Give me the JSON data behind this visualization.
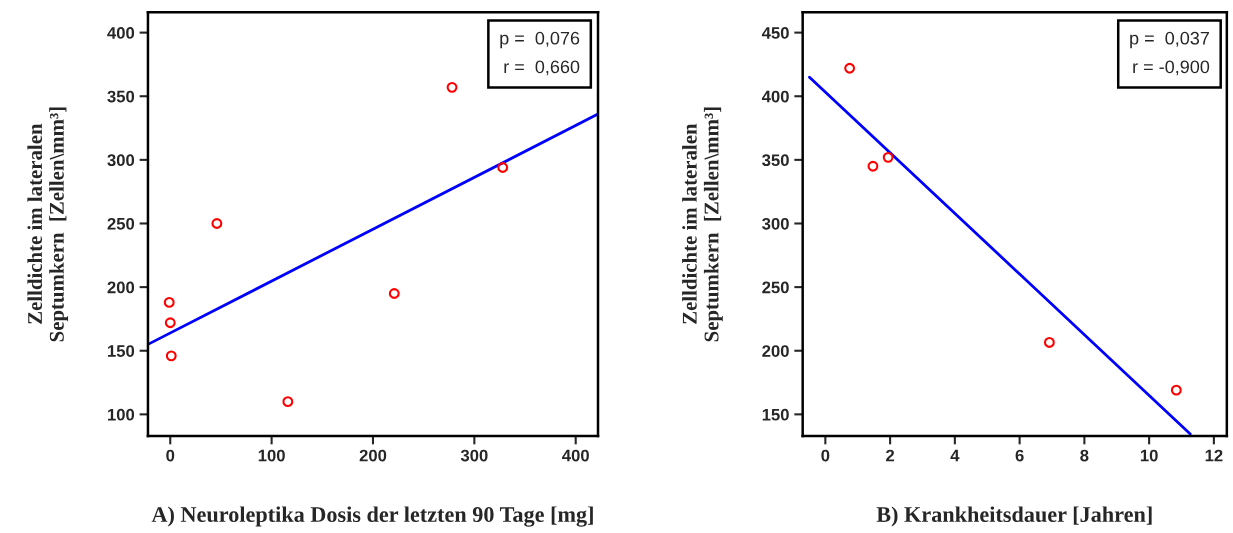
{
  "chart_data": [
    {
      "type": "scatter",
      "xlabel": "A) Neuroleptika Dosis der letzten 90 Tage [mg]",
      "ylabel": "Zelldichte im lateralen\nSeptumkern  [Zellen\\mm³]",
      "annotations": [
        "p =  0,076\nr =  0,660"
      ],
      "xlim": [
        -22,
        422
      ],
      "xticks": [
        0,
        100,
        200,
        300,
        400
      ],
      "ylim": [
        83,
        416
      ],
      "yticks": [
        100,
        150,
        200,
        250,
        300,
        350,
        400
      ],
      "grid": false,
      "series": [
        {
          "marker": "circle",
          "color": "#ff0000",
          "x": [
            -1,
            0,
            1,
            46,
            116,
            221,
            278,
            328
          ],
          "values": [
            188,
            172,
            146,
            250,
            110,
            195,
            357,
            294
          ]
        },
        {
          "type": "line",
          "color": "#0000ff",
          "x": [
            -22,
            422
          ],
          "values": [
            155,
            336
          ]
        }
      ]
    },
    {
      "type": "scatter",
      "xlabel": "B) Krankheitsdauer [Jahren]",
      "ylabel": "Zelldichte im lateralen\nSeptumkern  [Zellen\\mm³]",
      "annotations": [
        "p =  0,037\nr = -0,900"
      ],
      "xlim": [
        -0.7,
        12.4
      ],
      "xticks": [
        0,
        2,
        4,
        6,
        8,
        10,
        12
      ],
      "ylim": [
        133,
        466
      ],
      "yticks": [
        150,
        200,
        250,
        300,
        350,
        400,
        450
      ],
      "grid": false,
      "series": [
        {
          "marker": "circle",
          "color": "#ff0000",
          "x": [
            0.75,
            1.47,
            1.94,
            6.92,
            10.84
          ],
          "values": [
            422,
            345,
            352,
            206.5,
            169
          ]
        },
        {
          "type": "line",
          "color": "#0000ff",
          "x": [
            -0.49,
            11.27
          ],
          "values": [
            415,
            134.6
          ]
        }
      ]
    }
  ]
}
